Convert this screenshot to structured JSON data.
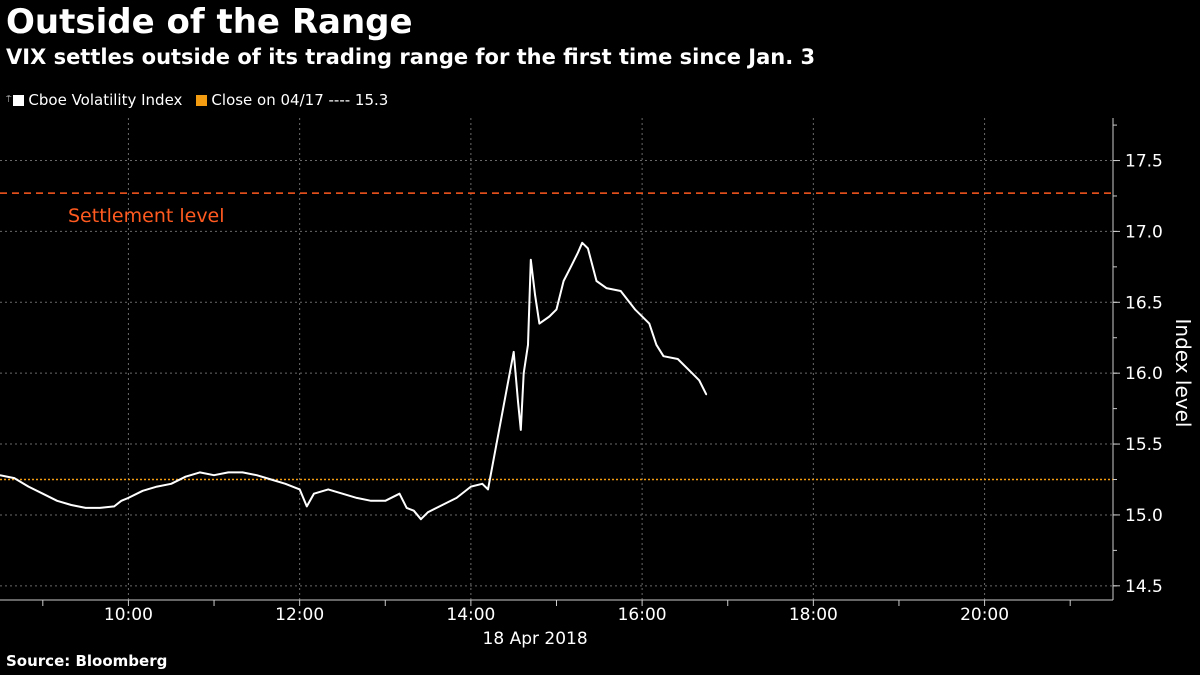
{
  "header": {
    "title": "Outside of the Range",
    "subtitle": "VIX settles outside of its trading range for the first time since Jan. 3"
  },
  "legend": {
    "series_label": "Cboe Volatility Index",
    "close_label": "Close on 04/17 ---- 15.3",
    "series_color": "#ffffff",
    "close_color": "#f39c12"
  },
  "source": "Source: Bloomberg",
  "chart_data": {
    "type": "line",
    "title": "Outside of the Range",
    "subtitle": "VIX settles outside of its trading range for the first time since Jan. 3",
    "xlabel": "18 Apr 2018",
    "ylabel": "Index level",
    "x_ticks": [
      "10:00",
      "12:00",
      "14:00",
      "16:00",
      "18:00",
      "20:00"
    ],
    "y_ticks": [
      "14.5",
      "15.0",
      "15.5",
      "16.0",
      "16.5",
      "17.0",
      "17.5"
    ],
    "xlim": [
      "08:30",
      "21:30"
    ],
    "ylim": [
      14.4,
      17.8
    ],
    "grid": true,
    "legend_position": "top-left",
    "reference_lines": [
      {
        "name": "Close on 04/17",
        "value": 15.25,
        "style": "dotted",
        "color": "#f39c12"
      },
      {
        "name": "Settlement level",
        "value": 17.27,
        "style": "dashed",
        "color": "#ff5a1f",
        "label": "Settlement level"
      }
    ],
    "series": [
      {
        "name": "Cboe Volatility Index",
        "color": "#ffffff",
        "points": [
          [
            "08:30",
            15.28
          ],
          [
            "08:40",
            15.26
          ],
          [
            "08:50",
            15.2
          ],
          [
            "09:00",
            15.15
          ],
          [
            "09:10",
            15.1
          ],
          [
            "09:20",
            15.07
          ],
          [
            "09:30",
            15.05
          ],
          [
            "09:40",
            15.05
          ],
          [
            "09:50",
            15.06
          ],
          [
            "09:55",
            15.1
          ],
          [
            "10:00",
            15.12
          ],
          [
            "10:10",
            15.17
          ],
          [
            "10:20",
            15.2
          ],
          [
            "10:30",
            15.22
          ],
          [
            "10:40",
            15.27
          ],
          [
            "10:50",
            15.3
          ],
          [
            "11:00",
            15.28
          ],
          [
            "11:10",
            15.3
          ],
          [
            "11:20",
            15.3
          ],
          [
            "11:30",
            15.28
          ],
          [
            "11:40",
            15.25
          ],
          [
            "11:50",
            15.22
          ],
          [
            "12:00",
            15.18
          ],
          [
            "12:05",
            15.06
          ],
          [
            "12:10",
            15.15
          ],
          [
            "12:20",
            15.18
          ],
          [
            "12:30",
            15.15
          ],
          [
            "12:40",
            15.12
          ],
          [
            "12:50",
            15.1
          ],
          [
            "13:00",
            15.1
          ],
          [
            "13:10",
            15.15
          ],
          [
            "13:15",
            15.05
          ],
          [
            "13:20",
            15.03
          ],
          [
            "13:25",
            14.97
          ],
          [
            "13:30",
            15.02
          ],
          [
            "13:40",
            15.07
          ],
          [
            "13:50",
            15.12
          ],
          [
            "14:00",
            15.2
          ],
          [
            "14:08",
            15.22
          ],
          [
            "14:12",
            15.18
          ],
          [
            "14:30",
            16.15
          ],
          [
            "14:33",
            15.8
          ],
          [
            "14:35",
            15.6
          ],
          [
            "14:37",
            16.0
          ],
          [
            "14:40",
            16.2
          ],
          [
            "14:42",
            16.8
          ],
          [
            "14:45",
            16.55
          ],
          [
            "14:48",
            16.35
          ],
          [
            "14:55",
            16.4
          ],
          [
            "15:00",
            16.45
          ],
          [
            "15:05",
            16.65
          ],
          [
            "15:10",
            16.75
          ],
          [
            "15:15",
            16.85
          ],
          [
            "15:18",
            16.92
          ],
          [
            "15:22",
            16.88
          ],
          [
            "15:28",
            16.65
          ],
          [
            "15:35",
            16.6
          ],
          [
            "15:45",
            16.58
          ],
          [
            "15:55",
            16.45
          ],
          [
            "16:05",
            16.35
          ],
          [
            "16:10",
            16.2
          ],
          [
            "16:15",
            16.12
          ],
          [
            "16:25",
            16.1
          ],
          [
            "16:35",
            16.0
          ],
          [
            "16:40",
            15.95
          ],
          [
            "16:45",
            15.85
          ]
        ]
      }
    ]
  }
}
